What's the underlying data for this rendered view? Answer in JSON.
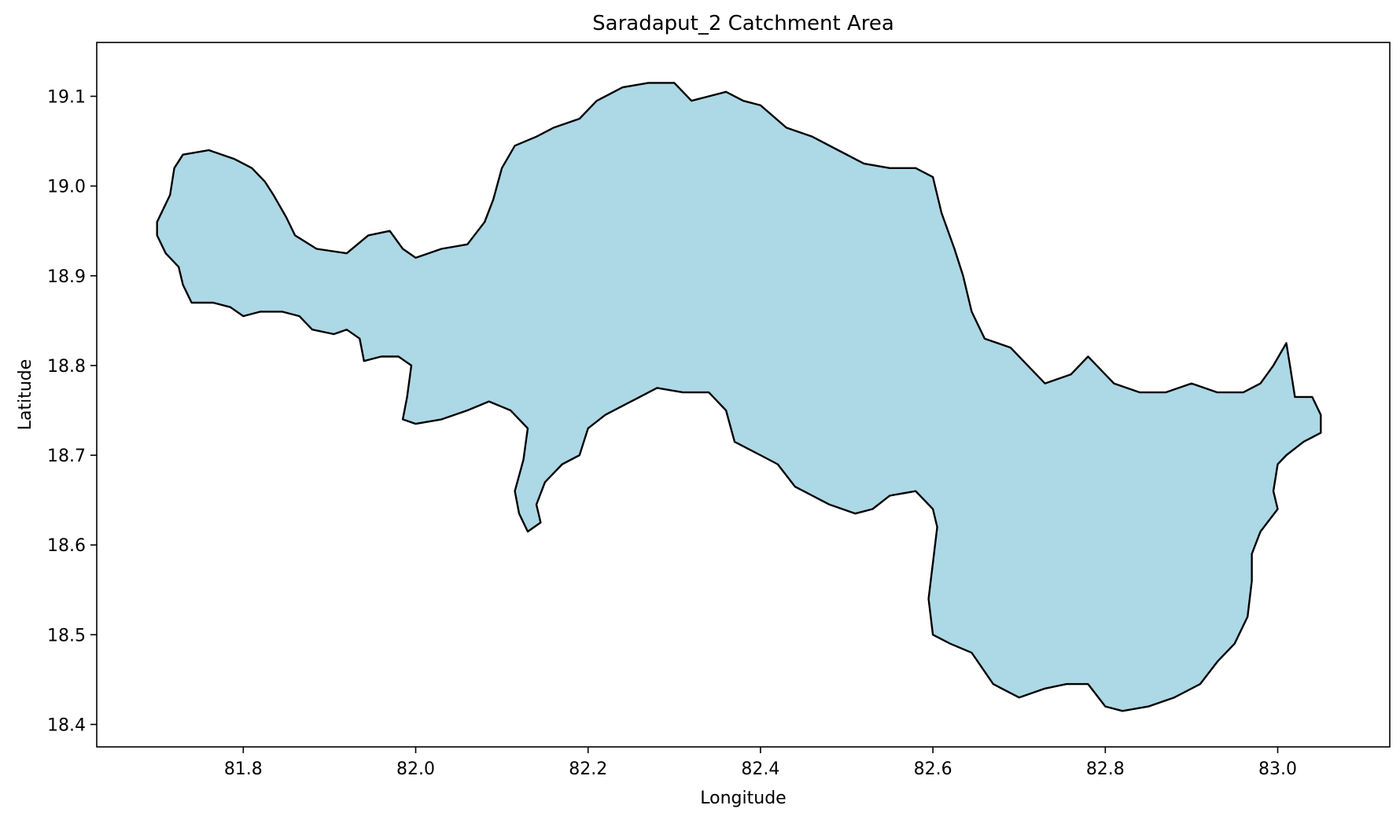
{
  "chart_data": {
    "type": "map",
    "title": "Saradaput_2 Catchment Area",
    "xlabel": "Longitude",
    "ylabel": "Latitude",
    "xlim": [
      81.63,
      83.13
    ],
    "ylim": [
      18.375,
      19.16
    ],
    "x_ticks": [
      81.8,
      82.0,
      82.2,
      82.4,
      82.6,
      82.8,
      83.0
    ],
    "x_tick_labels": [
      "81.8",
      "82.0",
      "82.2",
      "82.4",
      "82.6",
      "82.8",
      "83.0"
    ],
    "y_ticks": [
      18.4,
      18.5,
      18.6,
      18.7,
      18.8,
      18.9,
      19.0,
      19.1
    ],
    "y_tick_labels": [
      "18.4",
      "18.5",
      "18.6",
      "18.7",
      "18.8",
      "18.9",
      "19.0",
      "19.1"
    ],
    "grid": false,
    "fill_color": "#add8e6",
    "edge_color": "#000000",
    "boundary": [
      [
        81.7,
        18.96
      ],
      [
        81.715,
        18.99
      ],
      [
        81.72,
        19.02
      ],
      [
        81.73,
        19.035
      ],
      [
        81.76,
        19.04
      ],
      [
        81.79,
        19.03
      ],
      [
        81.81,
        19.02
      ],
      [
        81.825,
        19.005
      ],
      [
        81.835,
        18.99
      ],
      [
        81.85,
        18.965
      ],
      [
        81.86,
        18.945
      ],
      [
        81.885,
        18.93
      ],
      [
        81.92,
        18.925
      ],
      [
        81.945,
        18.945
      ],
      [
        81.97,
        18.95
      ],
      [
        81.985,
        18.93
      ],
      [
        82.0,
        18.92
      ],
      [
        82.03,
        18.93
      ],
      [
        82.06,
        18.935
      ],
      [
        82.08,
        18.96
      ],
      [
        82.09,
        18.985
      ],
      [
        82.1,
        19.02
      ],
      [
        82.115,
        19.045
      ],
      [
        82.14,
        19.055
      ],
      [
        82.16,
        19.065
      ],
      [
        82.19,
        19.075
      ],
      [
        82.21,
        19.095
      ],
      [
        82.24,
        19.11
      ],
      [
        82.27,
        19.115
      ],
      [
        82.3,
        19.115
      ],
      [
        82.32,
        19.095
      ],
      [
        82.34,
        19.1
      ],
      [
        82.36,
        19.105
      ],
      [
        82.38,
        19.095
      ],
      [
        82.4,
        19.09
      ],
      [
        82.43,
        19.065
      ],
      [
        82.46,
        19.055
      ],
      [
        82.49,
        19.04
      ],
      [
        82.52,
        19.025
      ],
      [
        82.55,
        19.02
      ],
      [
        82.58,
        19.02
      ],
      [
        82.6,
        19.01
      ],
      [
        82.61,
        18.97
      ],
      [
        82.625,
        18.93
      ],
      [
        82.635,
        18.9
      ],
      [
        82.645,
        18.86
      ],
      [
        82.66,
        18.83
      ],
      [
        82.69,
        18.82
      ],
      [
        82.71,
        18.8
      ],
      [
        82.73,
        18.78
      ],
      [
        82.76,
        18.79
      ],
      [
        82.78,
        18.81
      ],
      [
        82.81,
        18.78
      ],
      [
        82.84,
        18.77
      ],
      [
        82.87,
        18.77
      ],
      [
        82.9,
        18.78
      ],
      [
        82.93,
        18.77
      ],
      [
        82.96,
        18.77
      ],
      [
        82.98,
        18.78
      ],
      [
        82.995,
        18.8
      ],
      [
        83.01,
        18.825
      ],
      [
        83.015,
        18.795
      ],
      [
        83.02,
        18.765
      ],
      [
        83.04,
        18.765
      ],
      [
        83.05,
        18.745
      ],
      [
        83.05,
        18.725
      ],
      [
        83.03,
        18.715
      ],
      [
        83.01,
        18.7
      ],
      [
        83.0,
        18.69
      ],
      [
        82.995,
        18.66
      ],
      [
        83.0,
        18.64
      ],
      [
        82.98,
        18.615
      ],
      [
        82.97,
        18.59
      ],
      [
        82.97,
        18.56
      ],
      [
        82.965,
        18.52
      ],
      [
        82.95,
        18.49
      ],
      [
        82.93,
        18.47
      ],
      [
        82.91,
        18.445
      ],
      [
        82.88,
        18.43
      ],
      [
        82.85,
        18.42
      ],
      [
        82.82,
        18.415
      ],
      [
        82.8,
        18.42
      ],
      [
        82.78,
        18.445
      ],
      [
        82.755,
        18.445
      ],
      [
        82.73,
        18.44
      ],
      [
        82.7,
        18.43
      ],
      [
        82.67,
        18.445
      ],
      [
        82.645,
        18.48
      ],
      [
        82.62,
        18.49
      ],
      [
        82.6,
        18.5
      ],
      [
        82.595,
        18.54
      ],
      [
        82.6,
        18.58
      ],
      [
        82.605,
        18.62
      ],
      [
        82.6,
        18.64
      ],
      [
        82.58,
        18.66
      ],
      [
        82.55,
        18.655
      ],
      [
        82.53,
        18.64
      ],
      [
        82.51,
        18.635
      ],
      [
        82.48,
        18.645
      ],
      [
        82.44,
        18.665
      ],
      [
        82.42,
        18.69
      ],
      [
        82.4,
        18.7
      ],
      [
        82.37,
        18.715
      ],
      [
        82.36,
        18.75
      ],
      [
        82.34,
        18.77
      ],
      [
        82.31,
        18.77
      ],
      [
        82.28,
        18.775
      ],
      [
        82.25,
        18.76
      ],
      [
        82.22,
        18.745
      ],
      [
        82.2,
        18.73
      ],
      [
        82.19,
        18.7
      ],
      [
        82.17,
        18.69
      ],
      [
        82.15,
        18.67
      ],
      [
        82.14,
        18.645
      ],
      [
        82.145,
        18.625
      ],
      [
        82.13,
        18.615
      ],
      [
        82.12,
        18.635
      ],
      [
        82.115,
        18.66
      ],
      [
        82.125,
        18.695
      ],
      [
        82.13,
        18.73
      ],
      [
        82.11,
        18.75
      ],
      [
        82.085,
        18.76
      ],
      [
        82.06,
        18.75
      ],
      [
        82.03,
        18.74
      ],
      [
        82.0,
        18.735
      ],
      [
        81.985,
        18.74
      ],
      [
        81.99,
        18.765
      ],
      [
        81.995,
        18.8
      ],
      [
        81.98,
        18.81
      ],
      [
        81.96,
        18.81
      ],
      [
        81.94,
        18.805
      ],
      [
        81.935,
        18.83
      ],
      [
        81.92,
        18.84
      ],
      [
        81.905,
        18.835
      ],
      [
        81.88,
        18.84
      ],
      [
        81.865,
        18.855
      ],
      [
        81.845,
        18.86
      ],
      [
        81.82,
        18.86
      ],
      [
        81.8,
        18.855
      ],
      [
        81.785,
        18.865
      ],
      [
        81.765,
        18.87
      ],
      [
        81.74,
        18.87
      ],
      [
        81.73,
        18.89
      ],
      [
        81.725,
        18.91
      ],
      [
        81.71,
        18.925
      ],
      [
        81.7,
        18.945
      ]
    ]
  }
}
